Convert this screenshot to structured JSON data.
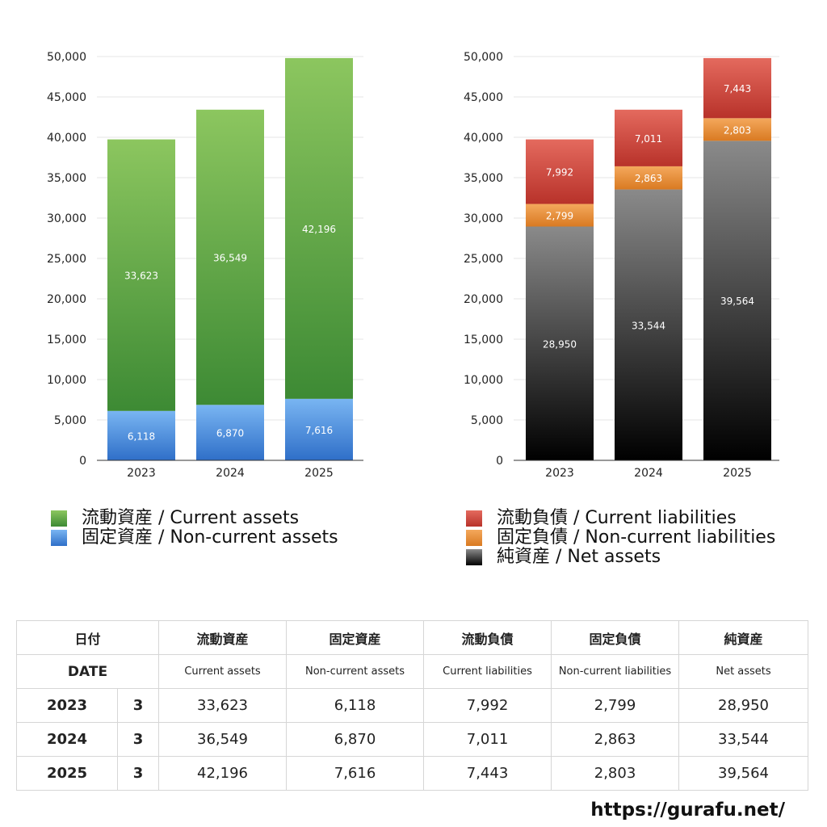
{
  "chart_data": [
    {
      "type": "bar",
      "stacked": true,
      "categories": [
        "2023",
        "2024",
        "2025"
      ],
      "ylim": [
        0,
        50000
      ],
      "yticks": [
        0,
        5000,
        10000,
        15000,
        20000,
        25000,
        30000,
        35000,
        40000,
        45000,
        50000
      ],
      "grid": true,
      "legend_position": "bottom",
      "series": [
        {
          "name": "固定資産 / Non-current assets",
          "key": "nca",
          "values": [
            6118,
            6870,
            7616
          ],
          "color_top": "#79b5f2",
          "color_bottom": "#2f6fc8"
        },
        {
          "name": "流動資産 / Current assets",
          "key": "ca",
          "values": [
            33623,
            36549,
            42196
          ],
          "color_top": "#8cc65f",
          "color_bottom": "#3d8a34"
        }
      ]
    },
    {
      "type": "bar",
      "stacked": true,
      "categories": [
        "2023",
        "2024",
        "2025"
      ],
      "ylim": [
        0,
        50000
      ],
      "yticks": [
        0,
        5000,
        10000,
        15000,
        20000,
        25000,
        30000,
        35000,
        40000,
        45000,
        50000
      ],
      "grid": true,
      "legend_position": "bottom",
      "series": [
        {
          "name": "純資産 / Net assets",
          "key": "na",
          "values": [
            28950,
            33544,
            39564
          ],
          "color_top": "#8a8a8a",
          "color_bottom": "#000000"
        },
        {
          "name": "固定負債 / Non-current liabilities",
          "key": "ncl",
          "values": [
            2799,
            2863,
            2803
          ],
          "color_top": "#f4a85c",
          "color_bottom": "#d97a22"
        },
        {
          "name": "流動負債 / Current liabilities",
          "key": "cl",
          "values": [
            7992,
            7011,
            7443
          ],
          "color_top": "#e46a5e",
          "color_bottom": "#b8322a"
        }
      ]
    }
  ],
  "legend_left": [
    "流動資産 / Current assets",
    "固定資産 / Non-current assets"
  ],
  "legend_right": [
    "流動負債 / Current liabilities",
    "固定負債 / Non-current liabilities",
    "純資産 / Net assets"
  ],
  "table": {
    "head_jp": {
      "date": "日付",
      "ca": "流動資産",
      "nca": "固定資産",
      "cl": "流動負債",
      "ncl": "固定負債",
      "na": "純資産"
    },
    "head_en": {
      "date": "DATE",
      "ca": "Current assets",
      "nca": "Non-current assets",
      "cl": "Current liabilities",
      "ncl": "Non-current liabilities",
      "na": "Net assets"
    },
    "rows": [
      {
        "year": "2023",
        "month": "3",
        "ca": "33,623",
        "nca": "6,118",
        "cl": "7,992",
        "ncl": "2,799",
        "na": "28,950"
      },
      {
        "year": "2024",
        "month": "3",
        "ca": "36,549",
        "nca": "6,870",
        "cl": "7,011",
        "ncl": "2,863",
        "na": "33,544"
      },
      {
        "year": "2025",
        "month": "3",
        "ca": "42,196",
        "nca": "7,616",
        "cl": "7,443",
        "ncl": "2,803",
        "na": "39,564"
      }
    ]
  },
  "site_url": "https://gurafu.net/"
}
